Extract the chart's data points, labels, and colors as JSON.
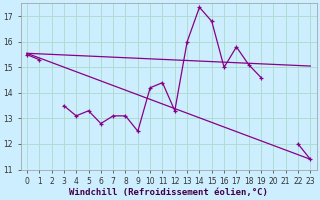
{
  "xlabel": "Windchill (Refroidissement éolien,°C)",
  "background_color": "#cceeff",
  "grid_color": "#b0ddd0",
  "line_color": "#880088",
  "x_values": [
    0,
    1,
    2,
    3,
    4,
    5,
    6,
    7,
    8,
    9,
    10,
    11,
    12,
    13,
    14,
    15,
    16,
    17,
    18,
    19,
    20,
    21,
    22,
    23
  ],
  "series_main": [
    15.5,
    15.3,
    null,
    13.5,
    13.1,
    13.3,
    12.8,
    13.1,
    13.1,
    12.5,
    14.2,
    14.4,
    13.3,
    16.0,
    17.35,
    16.8,
    15.0,
    15.8,
    15.1,
    14.6,
    null,
    null,
    12.0,
    11.4
  ],
  "trend1_x": [
    0,
    23
  ],
  "trend1_y": [
    15.55,
    15.05
  ],
  "trend2_x": [
    0,
    23
  ],
  "trend2_y": [
    15.55,
    11.4
  ],
  "xlim": [
    0,
    23
  ],
  "ylim": [
    11,
    17.5
  ],
  "yticks": [
    11,
    12,
    13,
    14,
    15,
    16,
    17
  ],
  "xticks": [
    0,
    1,
    2,
    3,
    4,
    5,
    6,
    7,
    8,
    9,
    10,
    11,
    12,
    13,
    14,
    15,
    16,
    17,
    18,
    19,
    20,
    21,
    22,
    23
  ],
  "tick_fontsize": 5.5,
  "xlabel_fontsize": 6.5
}
